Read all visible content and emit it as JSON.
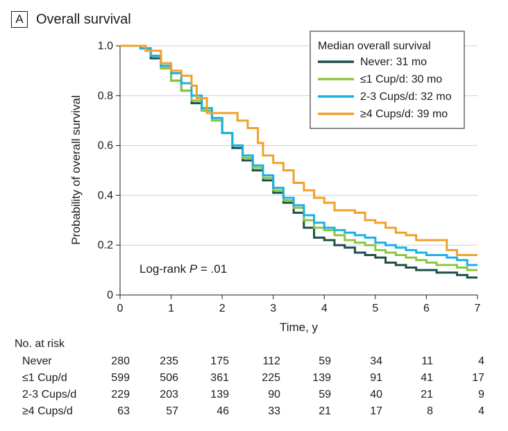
{
  "panel": {
    "letter": "A",
    "title": "Overall survival"
  },
  "chart_data": {
    "type": "line",
    "title": "Overall survival",
    "xlabel": "Time, y",
    "ylabel": "Probability of overall survival",
    "xlim": [
      0,
      7
    ],
    "ylim": [
      0,
      1.0
    ],
    "x_ticks": [
      0,
      1,
      2,
      3,
      4,
      5,
      6,
      7
    ],
    "x_tick_labels": [
      "0",
      "1",
      "2",
      "3",
      "4",
      "5",
      "6",
      "7"
    ],
    "y_ticks": [
      0,
      0.2,
      0.4,
      0.6,
      0.8,
      1.0
    ],
    "y_tick_labels": [
      "0",
      "0.2",
      "0.4",
      "0.6",
      "0.8",
      "1.0"
    ],
    "grid": "horizontal",
    "annotation": {
      "prefix": "Log-rank ",
      "p": "P",
      "suffix": " = .01"
    },
    "legend_title": "Median overall survival",
    "legend_position": "top-right",
    "series": [
      {
        "name": "Never",
        "legend_label": "Never: 31 mo",
        "color": "#1f4e4a",
        "x": [
          0,
          0.4,
          0.6,
          0.8,
          1.0,
          1.2,
          1.4,
          1.6,
          1.8,
          2.0,
          2.2,
          2.4,
          2.6,
          2.8,
          3.0,
          3.2,
          3.4,
          3.6,
          3.8,
          4.0,
          4.2,
          4.4,
          4.6,
          4.8,
          5.0,
          5.2,
          5.4,
          5.6,
          5.8,
          6.0,
          6.2,
          6.4,
          6.6,
          6.8,
          7.0
        ],
        "y": [
          1.0,
          0.99,
          0.95,
          0.91,
          0.86,
          0.82,
          0.77,
          0.74,
          0.71,
          0.65,
          0.59,
          0.54,
          0.5,
          0.46,
          0.41,
          0.37,
          0.33,
          0.27,
          0.23,
          0.22,
          0.2,
          0.19,
          0.17,
          0.16,
          0.15,
          0.13,
          0.12,
          0.11,
          0.1,
          0.1,
          0.09,
          0.09,
          0.08,
          0.07,
          0.07
        ]
      },
      {
        "name": "≤1 Cup/d",
        "legend_label": "≤1 Cup/d: 30 mo",
        "color": "#8cc63f",
        "x": [
          0,
          0.4,
          0.6,
          0.8,
          1.0,
          1.2,
          1.4,
          1.6,
          1.8,
          2.0,
          2.2,
          2.4,
          2.6,
          2.8,
          3.0,
          3.2,
          3.4,
          3.6,
          3.8,
          4.0,
          4.2,
          4.4,
          4.6,
          4.8,
          5.0,
          5.2,
          5.4,
          5.6,
          5.8,
          6.0,
          6.2,
          6.4,
          6.6,
          6.8,
          7.0
        ],
        "y": [
          1.0,
          0.99,
          0.96,
          0.91,
          0.86,
          0.82,
          0.78,
          0.74,
          0.7,
          0.65,
          0.6,
          0.55,
          0.51,
          0.47,
          0.42,
          0.38,
          0.35,
          0.3,
          0.27,
          0.26,
          0.24,
          0.22,
          0.21,
          0.2,
          0.18,
          0.17,
          0.16,
          0.15,
          0.14,
          0.13,
          0.12,
          0.12,
          0.11,
          0.1,
          0.1
        ]
      },
      {
        "name": "2-3 Cups/d",
        "legend_label": "2-3 Cups/d: 32 mo",
        "color": "#1bb0e4",
        "x": [
          0,
          0.4,
          0.6,
          0.8,
          1.0,
          1.2,
          1.4,
          1.6,
          1.8,
          2.0,
          2.2,
          2.4,
          2.6,
          2.8,
          3.0,
          3.2,
          3.4,
          3.6,
          3.8,
          4.0,
          4.2,
          4.4,
          4.6,
          4.8,
          5.0,
          5.2,
          5.4,
          5.6,
          5.8,
          6.0,
          6.2,
          6.4,
          6.6,
          6.8,
          7.0
        ],
        "y": [
          1.0,
          0.99,
          0.96,
          0.92,
          0.89,
          0.85,
          0.8,
          0.75,
          0.71,
          0.65,
          0.6,
          0.56,
          0.52,
          0.48,
          0.43,
          0.39,
          0.36,
          0.32,
          0.29,
          0.27,
          0.26,
          0.25,
          0.24,
          0.23,
          0.21,
          0.2,
          0.19,
          0.18,
          0.17,
          0.16,
          0.16,
          0.15,
          0.14,
          0.12,
          0.12
        ]
      },
      {
        "name": "≥4 Cups/d",
        "legend_label": "≥4 Cups/d: 39 mo",
        "color": "#f0a02a",
        "x": [
          0,
          0.5,
          0.8,
          1.0,
          1.2,
          1.4,
          1.5,
          1.7,
          1.9,
          2.0,
          2.2,
          2.3,
          2.5,
          2.7,
          2.8,
          3.0,
          3.2,
          3.4,
          3.6,
          3.8,
          4.0,
          4.2,
          4.4,
          4.6,
          4.8,
          5.0,
          5.2,
          5.4,
          5.6,
          5.8,
          6.0,
          6.2,
          6.4,
          6.6,
          6.8,
          7.0
        ],
        "y": [
          1.0,
          0.98,
          0.93,
          0.9,
          0.88,
          0.84,
          0.79,
          0.73,
          0.73,
          0.73,
          0.73,
          0.7,
          0.67,
          0.61,
          0.56,
          0.53,
          0.5,
          0.45,
          0.42,
          0.39,
          0.37,
          0.34,
          0.34,
          0.33,
          0.3,
          0.29,
          0.27,
          0.25,
          0.24,
          0.22,
          0.22,
          0.22,
          0.18,
          0.16,
          0.16,
          0.16
        ]
      }
    ]
  },
  "risk_table": {
    "title": "No. at risk",
    "rows": [
      {
        "label": "Never",
        "values": [
          "280",
          "235",
          "175",
          "112",
          "59",
          "34",
          "11",
          "4"
        ]
      },
      {
        "label": "≤1 Cup/d",
        "values": [
          "599",
          "506",
          "361",
          "225",
          "139",
          "91",
          "41",
          "17"
        ]
      },
      {
        "label": "2-3 Cups/d",
        "values": [
          "229",
          "203",
          "139",
          "90",
          "59",
          "40",
          "21",
          "9"
        ]
      },
      {
        "label": "≥4 Cups/d",
        "values": [
          "63",
          "57",
          "46",
          "33",
          "21",
          "17",
          "8",
          "4"
        ]
      }
    ]
  }
}
